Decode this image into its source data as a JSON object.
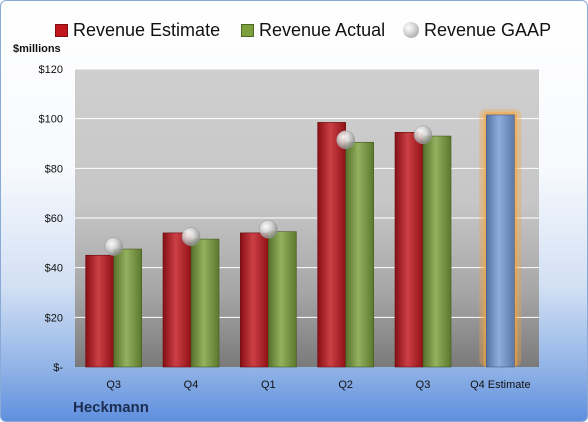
{
  "chart_data": {
    "type": "bar",
    "ylabel": "$millions",
    "ylim": [
      0,
      120
    ],
    "y_ticks": [
      {
        "value": 0,
        "label": "$-"
      },
      {
        "value": 20,
        "label": "$20"
      },
      {
        "value": 40,
        "label": "$40"
      },
      {
        "value": 60,
        "label": "$60"
      },
      {
        "value": 80,
        "label": "$80"
      },
      {
        "value": 100,
        "label": "$100"
      },
      {
        "value": 120,
        "label": "$120"
      }
    ],
    "categories": [
      "Q3",
      "Q4",
      "Q1",
      "Q2",
      "Q3",
      "Q4 Estimate"
    ],
    "series": [
      {
        "name": "Revenue Estimate",
        "kind": "bar",
        "color": "#c0161c",
        "values": [
          45,
          54,
          54,
          98.5,
          94.5,
          null
        ]
      },
      {
        "name": "Revenue Actual",
        "kind": "bar",
        "color": "#7ba03c",
        "values": [
          47.5,
          51.5,
          54.5,
          90.5,
          93,
          null
        ]
      },
      {
        "name": "Revenue GAAP",
        "kind": "marker",
        "color": "#b8b8b8",
        "values": [
          48.5,
          52.5,
          55.5,
          91.5,
          93.5,
          null
        ]
      }
    ],
    "forecast": {
      "category": "Q4 Estimate",
      "value": 101.5,
      "color": "#6f99d6",
      "glow_color": "#f5a540"
    },
    "grid": true,
    "legend_position": "top"
  },
  "company": "Heckmann",
  "colors": {
    "plot_background": "#c8c8c8",
    "grid": "#ffffff",
    "frame_border": "#8aaad6",
    "company_text": "#1c2d52"
  }
}
